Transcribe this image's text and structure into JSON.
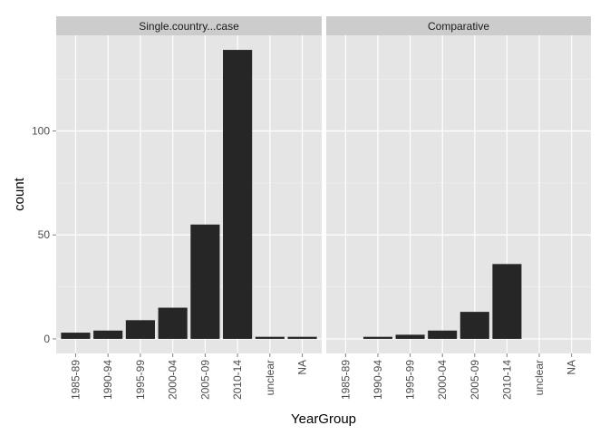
{
  "chart_data": {
    "type": "bar",
    "xlabel": "YearGroup",
    "ylabel": "count",
    "ylim": [
      -7,
      146
    ],
    "yticks": [
      0,
      50,
      100
    ],
    "categories": [
      "1985-89",
      "1990-94",
      "1995-99",
      "2000-04",
      "2005-09",
      "2010-14",
      "unclear",
      "NA"
    ],
    "facets": [
      {
        "name": "Single.country...case",
        "values": [
          3,
          4,
          9,
          15,
          55,
          139,
          1,
          1
        ]
      },
      {
        "name": "Comparative",
        "values": [
          0,
          1,
          2,
          4,
          13,
          36,
          0,
          0
        ]
      }
    ],
    "colors": {
      "panel_background": "#e5e5e5",
      "strip_background": "#cccccc",
      "bar": "#262626",
      "grid": "#ffffff"
    }
  }
}
